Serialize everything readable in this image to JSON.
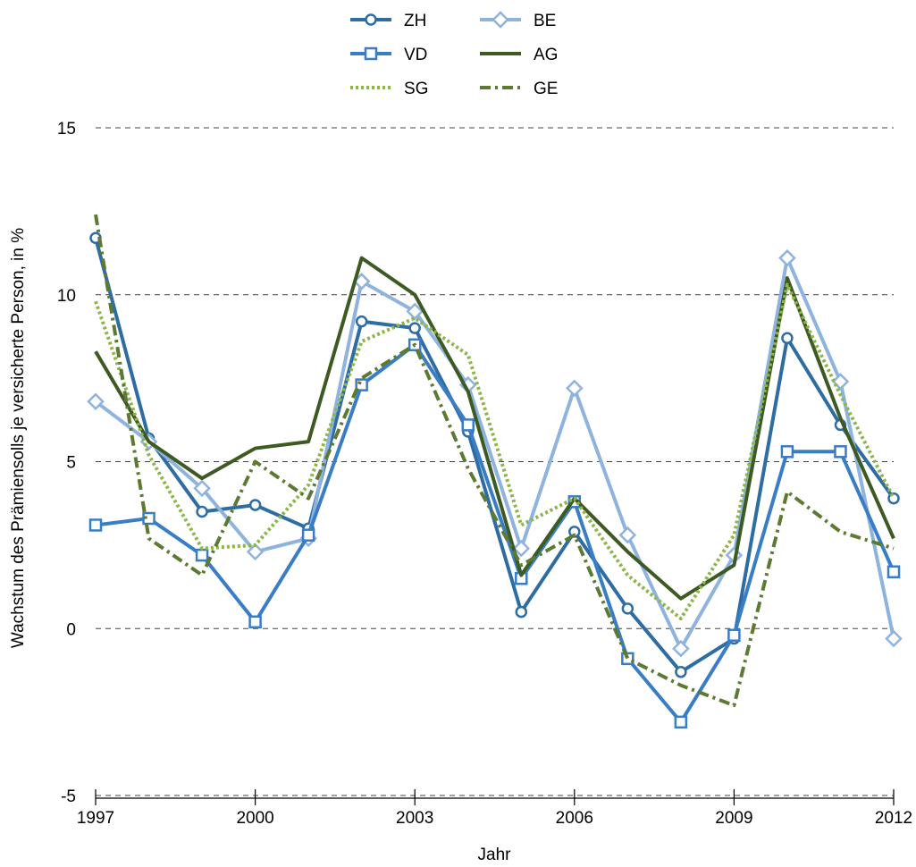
{
  "chart_data": {
    "type": "line",
    "title": "",
    "xlabel": "Jahr",
    "ylabel": "Wachstum des Prämiensolls je versicherte Person, in %",
    "xlim": [
      1997,
      2012
    ],
    "ylim": [
      -5,
      15
    ],
    "grid": "horizontal-dashed",
    "legend_position": "top",
    "x": [
      1997,
      1998,
      1999,
      2000,
      2001,
      2002,
      2003,
      2004,
      2005,
      2006,
      2007,
      2008,
      2009,
      2010,
      2011,
      2012
    ],
    "xticks": [
      "1997",
      "2000",
      "2003",
      "2006",
      "2009",
      "2012"
    ],
    "yticks": [
      "-5",
      "0",
      "5",
      "10",
      "15"
    ],
    "series": [
      {
        "name": "ZH",
        "color": "#2E6DA4",
        "style": "solid",
        "marker": "circle",
        "values": [
          11.7,
          5.7,
          3.5,
          3.7,
          3.0,
          9.2,
          9.0,
          5.9,
          0.5,
          2.9,
          0.6,
          -1.3,
          -0.3,
          8.7,
          6.1,
          3.9
        ]
      },
      {
        "name": "BE",
        "color": "#8EB3DE",
        "style": "solid",
        "marker": "diamond",
        "values": [
          6.8,
          5.6,
          4.2,
          2.3,
          2.7,
          10.4,
          9.5,
          7.3,
          2.4,
          7.2,
          2.8,
          -0.6,
          2.2,
          11.1,
          7.4,
          -0.3
        ]
      },
      {
        "name": "VD",
        "color": "#3A7DC7",
        "style": "solid",
        "marker": "square",
        "values": [
          3.1,
          3.3,
          2.2,
          0.2,
          2.8,
          7.3,
          8.5,
          6.1,
          1.5,
          3.8,
          -0.9,
          -2.8,
          -0.2,
          5.3,
          5.3,
          1.7
        ]
      },
      {
        "name": "AG",
        "color": "#3D5A22",
        "style": "solid",
        "marker": "none",
        "values": [
          8.3,
          5.6,
          4.5,
          5.4,
          5.6,
          11.1,
          10.0,
          7.1,
          1.6,
          3.9,
          2.3,
          0.9,
          1.9,
          10.5,
          6.3,
          2.7
        ]
      },
      {
        "name": "SG",
        "color": "#8DB54B",
        "style": "dotted",
        "marker": "none",
        "values": [
          9.8,
          5.2,
          2.4,
          2.5,
          4.3,
          8.6,
          9.3,
          8.2,
          3.1,
          3.9,
          1.6,
          0.3,
          2.8,
          10.3,
          7.0,
          3.9
        ]
      },
      {
        "name": "GE",
        "color": "#5C7A31",
        "style": "dashdot",
        "marker": "none",
        "values": [
          12.4,
          2.7,
          1.6,
          5.0,
          3.9,
          7.5,
          8.5,
          4.8,
          1.9,
          2.8,
          -0.9,
          -1.7,
          -2.3,
          4.1,
          2.9,
          2.4
        ]
      }
    ]
  }
}
